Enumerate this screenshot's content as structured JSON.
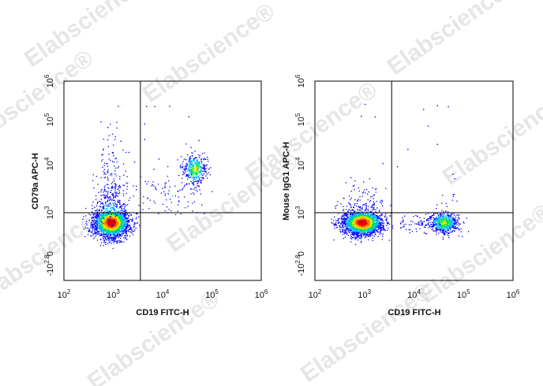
{
  "watermark": "Elabscience®",
  "chart_data": [
    {
      "type": "scatter",
      "subtype": "flow-cytometry-density-dot-plot",
      "xlabel": "CD19 FITC-H",
      "ylabel": "CD79a APC-H",
      "x_scale": "biexponential",
      "y_scale": "biexponential",
      "x_tick_labels": [
        "10^2",
        "10^3",
        "10^4",
        "10^5",
        "10^6"
      ],
      "y_tick_labels": [
        "-10^2.8",
        "0",
        "10^3",
        "10^4",
        "10^5",
        "10^6"
      ],
      "xlim_log10": [
        2,
        6
      ],
      "ylim_labels": [
        "-10^2.8",
        "10^6"
      ],
      "quadrant_gate": {
        "x_log10": 3.55,
        "y_log10": 3.0
      },
      "populations": [
        {
          "name": "",
          "center_x_log10": 2.95,
          "center_y_log10": 2.3,
          "spread_x": 0.18,
          "spread_y": 0.55,
          "events": 2600,
          "density": "high"
        },
        {
          "name": "",
          "center_x_log10": 4.65,
          "center_y_log10": 4.0,
          "spread_x": 0.12,
          "spread_y": 0.17,
          "events": 420,
          "density": "medium"
        },
        {
          "name": "",
          "center_x_log10": 2.95,
          "center_y_log10": 3.7,
          "spread_x": 0.12,
          "spread_y": 0.55,
          "events": 120,
          "density": "low"
        },
        {
          "name": "",
          "center_x_log10": 4.1,
          "center_y_log10": 3.4,
          "spread_x": 0.35,
          "spread_y": 0.25,
          "events": 90,
          "density": "low"
        }
      ],
      "density_colormap": [
        "#0000ff",
        "#00b7ff",
        "#00e35a",
        "#f2e500",
        "#ff7d00",
        "#e10000"
      ],
      "grid": false
    },
    {
      "type": "scatter",
      "subtype": "flow-cytometry-density-dot-plot",
      "xlabel": "CD19 FITC-H",
      "ylabel": "Mouse IgG1 APC-H",
      "x_scale": "biexponential",
      "y_scale": "biexponential",
      "x_tick_labels": [
        "10^2",
        "10^3",
        "10^4",
        "10^5",
        "10^6"
      ],
      "y_tick_labels": [
        "-10^2.8",
        "0",
        "10^3",
        "10^4",
        "10^5",
        "10^6"
      ],
      "xlim_log10": [
        2,
        6
      ],
      "ylim_labels": [
        "-10^2.8",
        "10^6"
      ],
      "quadrant_gate": {
        "x_log10": 3.55,
        "y_log10": 3.0
      },
      "populations": [
        {
          "name": "",
          "center_x_log10": 2.95,
          "center_y_log10": 2.3,
          "spread_x": 0.2,
          "spread_y": 0.45,
          "events": 2600,
          "density": "high"
        },
        {
          "name": "",
          "center_x_log10": 4.6,
          "center_y_log10": 2.3,
          "spread_x": 0.15,
          "spread_y": 0.4,
          "events": 650,
          "density": "medium"
        },
        {
          "name": "",
          "center_x_log10": 4.1,
          "center_y_log10": 2.3,
          "spread_x": 0.3,
          "spread_y": 0.3,
          "events": 80,
          "density": "low"
        }
      ],
      "density_colormap": [
        "#0000ff",
        "#00b7ff",
        "#00e35a",
        "#f2e500",
        "#ff7d00",
        "#e10000"
      ],
      "grid": false
    }
  ]
}
